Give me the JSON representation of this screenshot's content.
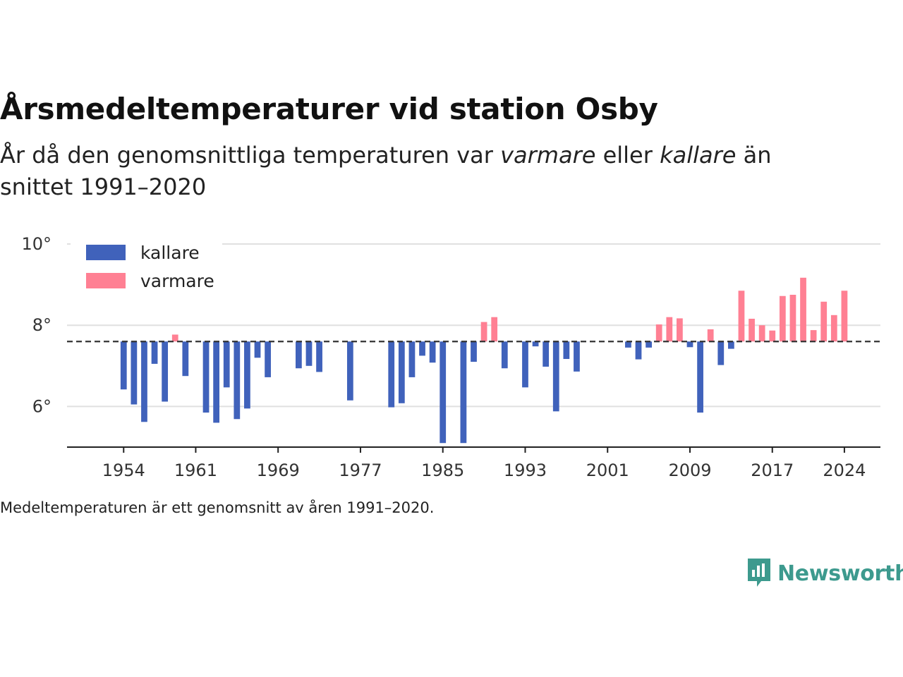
{
  "title": "Årsmedeltemperaturer vid station Osby",
  "subtitle": {
    "part1": "År då den genomsnittliga temperaturen var ",
    "warm_word": "varmare",
    "part2": " eller ",
    "cold_word": "kallare",
    "part3": " än snittet 1991–2020"
  },
  "note": "Medeltemperaturen är ett genomsnitt av åren 1991–2020.",
  "brand": {
    "name": "Newsworthy",
    "color": "#3d9a8e"
  },
  "chart_data": {
    "type": "bar",
    "baseline": 7.6,
    "ylim": [
      5.0,
      10.0
    ],
    "yticks": [
      6,
      8,
      10
    ],
    "ytick_labels": [
      "6°",
      "8°",
      "10°"
    ],
    "xlim": [
      1948.5,
      2027.5
    ],
    "xticks": [
      1954,
      1961,
      1969,
      1977,
      1985,
      1993,
      2001,
      2009,
      2017,
      2024
    ],
    "grid": true,
    "legend_position": "top-left",
    "colors": {
      "kallare": "#4062bb",
      "varmare": "#ff8093",
      "baseline": "#333333",
      "grid": "#e0e0e0"
    },
    "legend": [
      {
        "key": "kallare",
        "label": "kallare"
      },
      {
        "key": "varmare",
        "label": "varmare"
      }
    ],
    "series": [
      {
        "year": 1954,
        "value": 6.42
      },
      {
        "year": 1955,
        "value": 6.05
      },
      {
        "year": 1956,
        "value": 5.62
      },
      {
        "year": 1957,
        "value": 7.05
      },
      {
        "year": 1958,
        "value": 6.12
      },
      {
        "year": 1959,
        "value": 7.77
      },
      {
        "year": 1960,
        "value": 6.75
      },
      {
        "year": 1962,
        "value": 5.85
      },
      {
        "year": 1963,
        "value": 5.6
      },
      {
        "year": 1964,
        "value": 6.47
      },
      {
        "year": 1965,
        "value": 5.69
      },
      {
        "year": 1966,
        "value": 5.95
      },
      {
        "year": 1967,
        "value": 7.2
      },
      {
        "year": 1968,
        "value": 6.72
      },
      {
        "year": 1971,
        "value": 6.94
      },
      {
        "year": 1972,
        "value": 7.0
      },
      {
        "year": 1973,
        "value": 6.85
      },
      {
        "year": 1976,
        "value": 6.15
      },
      {
        "year": 1980,
        "value": 5.98
      },
      {
        "year": 1981,
        "value": 6.08
      },
      {
        "year": 1982,
        "value": 6.72
      },
      {
        "year": 1983,
        "value": 7.25
      },
      {
        "year": 1984,
        "value": 7.08
      },
      {
        "year": 1985,
        "value": 5.1
      },
      {
        "year": 1987,
        "value": 5.1
      },
      {
        "year": 1988,
        "value": 7.1
      },
      {
        "year": 1989,
        "value": 8.08
      },
      {
        "year": 1990,
        "value": 8.2
      },
      {
        "year": 1991,
        "value": 6.94
      },
      {
        "year": 1993,
        "value": 6.47
      },
      {
        "year": 1994,
        "value": 7.48
      },
      {
        "year": 1995,
        "value": 6.98
      },
      {
        "year": 1996,
        "value": 5.88
      },
      {
        "year": 1997,
        "value": 7.17
      },
      {
        "year": 1998,
        "value": 6.86
      },
      {
        "year": 2003,
        "value": 7.45
      },
      {
        "year": 2004,
        "value": 7.16
      },
      {
        "year": 2005,
        "value": 7.45
      },
      {
        "year": 2006,
        "value": 8.02
      },
      {
        "year": 2007,
        "value": 8.2
      },
      {
        "year": 2008,
        "value": 8.17
      },
      {
        "year": 2009,
        "value": 7.46
      },
      {
        "year": 2010,
        "value": 5.85
      },
      {
        "year": 2011,
        "value": 7.9
      },
      {
        "year": 2012,
        "value": 7.02
      },
      {
        "year": 2013,
        "value": 7.42
      },
      {
        "year": 2014,
        "value": 8.85
      },
      {
        "year": 2015,
        "value": 8.16
      },
      {
        "year": 2016,
        "value": 8.0
      },
      {
        "year": 2017,
        "value": 7.87
      },
      {
        "year": 2018,
        "value": 8.72
      },
      {
        "year": 2019,
        "value": 8.75
      },
      {
        "year": 2020,
        "value": 9.17
      },
      {
        "year": 2021,
        "value": 7.88
      },
      {
        "year": 2022,
        "value": 8.58
      },
      {
        "year": 2023,
        "value": 8.25
      },
      {
        "year": 2024,
        "value": 8.85
      }
    ]
  }
}
